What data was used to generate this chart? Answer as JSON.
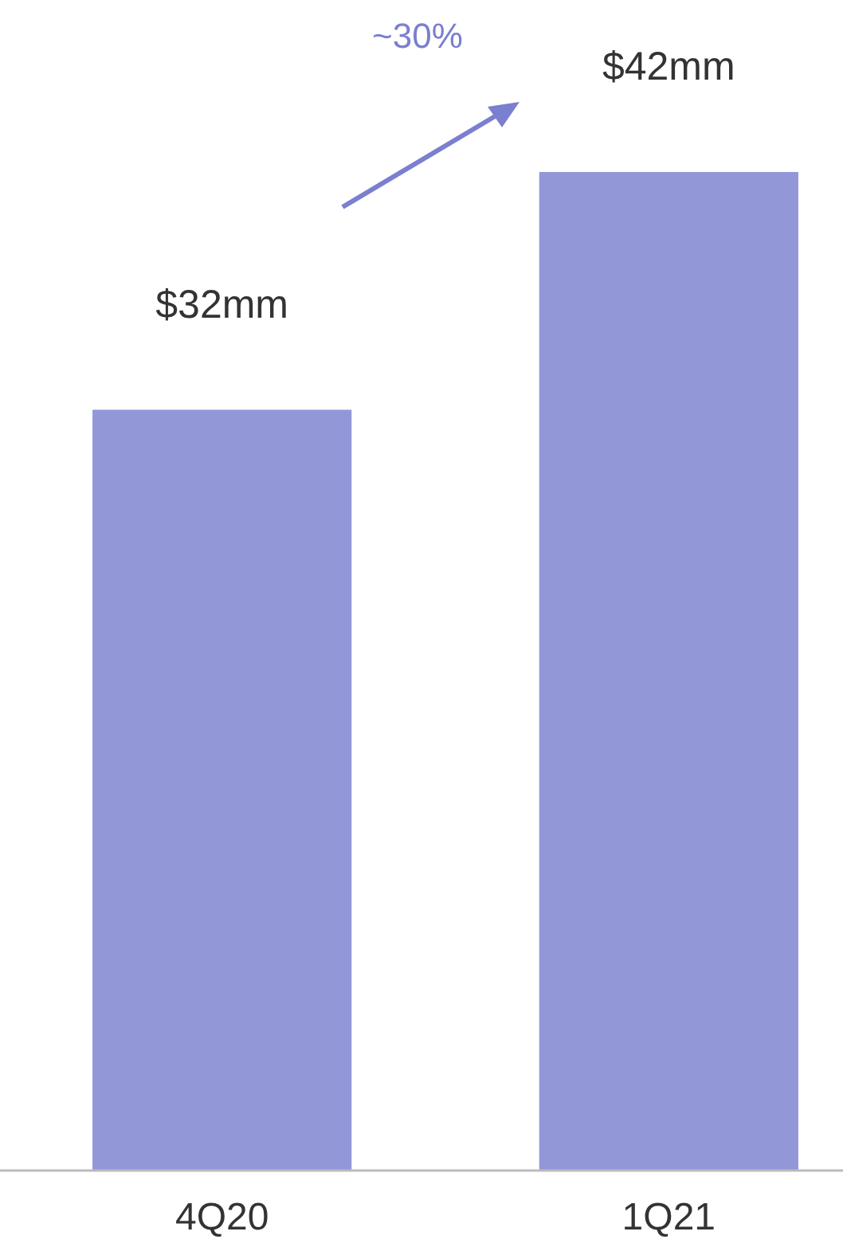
{
  "chart_data": {
    "type": "bar",
    "categories": [
      "4Q20",
      "1Q21"
    ],
    "values": [
      32,
      42
    ],
    "color": "#9297d8",
    "value_labels": [
      "$32mm",
      "$42mm"
    ],
    "annotations": [
      "~30%"
    ]
  }
}
